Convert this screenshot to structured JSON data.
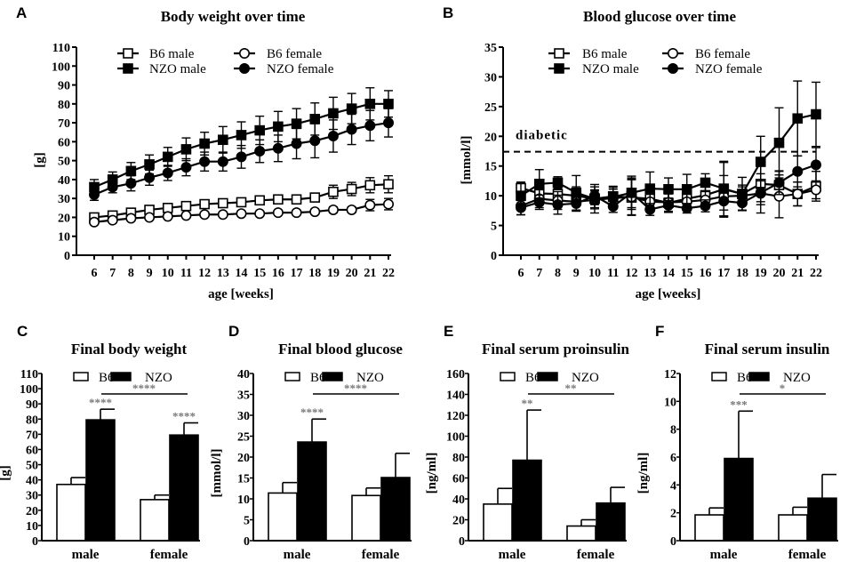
{
  "chart_data": [
    {
      "panel": "A",
      "type": "line",
      "title": "Body weight over time",
      "xlabel": "age [weeks]",
      "ylabel": "[g]",
      "x": [
        6,
        7,
        8,
        9,
        10,
        11,
        12,
        13,
        14,
        15,
        16,
        17,
        18,
        19,
        20,
        21,
        22
      ],
      "xticks": [
        "6",
        "7",
        "8",
        "9",
        "10",
        "11",
        "12",
        "13",
        "14",
        "15",
        "16",
        "17",
        "18",
        "19",
        "20",
        "21",
        "22"
      ],
      "ylim": [
        0,
        110
      ],
      "yticks": [
        "0",
        "10",
        "20",
        "30",
        "40",
        "50",
        "60",
        "70",
        "80",
        "90",
        "100",
        "110"
      ],
      "legend_placement": "top",
      "series": [
        {
          "name": "B6 male",
          "marker": "open-square",
          "values": [
            20,
            21,
            22.5,
            24,
            25,
            26,
            27,
            27.5,
            28,
            29,
            29.5,
            29.5,
            30.5,
            33.5,
            35,
            37,
            37.5
          ],
          "errors": [
            1.5,
            1.5,
            1.5,
            1.5,
            1.5,
            1.5,
            1.5,
            1.5,
            1.5,
            1.5,
            1.5,
            1.5,
            2,
            3.5,
            3.5,
            4,
            4.5
          ]
        },
        {
          "name": "B6 female",
          "marker": "open-circle",
          "values": [
            17.5,
            18.5,
            19.5,
            20,
            20.5,
            21,
            21.5,
            21.5,
            22,
            22,
            22.5,
            22.5,
            23,
            24,
            24,
            26.5,
            27
          ],
          "errors": [
            1,
            1,
            1,
            1,
            1,
            1,
            1,
            1,
            1,
            1,
            1,
            1,
            1,
            1.5,
            1.5,
            3,
            3
          ]
        },
        {
          "name": "NZO male",
          "marker": "filled-square",
          "values": [
            36,
            40,
            44.5,
            48,
            52,
            56,
            59,
            61,
            63.5,
            66,
            68,
            69.5,
            72,
            75,
            77.5,
            80,
            80
          ],
          "errors": [
            4,
            4,
            4.5,
            5,
            5,
            6,
            6,
            7,
            7,
            7.5,
            8,
            8,
            8.5,
            8.5,
            8,
            8.5,
            7
          ]
        },
        {
          "name": "NZO female",
          "marker": "filled-circle",
          "values": [
            32,
            36,
            38,
            41,
            43.5,
            46.5,
            49.5,
            49.5,
            52,
            55,
            56.5,
            59,
            60.5,
            63,
            66.5,
            68.5,
            70
          ],
          "errors": [
            3,
            3,
            4,
            4,
            4,
            4.5,
            5,
            5,
            6,
            6,
            7,
            8,
            9,
            8.5,
            8,
            8,
            7.5
          ]
        }
      ]
    },
    {
      "panel": "B",
      "type": "line",
      "title": "Blood glucose over time",
      "xlabel": "age [weeks]",
      "ylabel": "[mmol/l]",
      "x": [
        6,
        7,
        8,
        9,
        10,
        11,
        12,
        13,
        14,
        15,
        16,
        17,
        18,
        19,
        20,
        21,
        22
      ],
      "xticks": [
        "6",
        "7",
        "8",
        "9",
        "10",
        "11",
        "12",
        "13",
        "14",
        "15",
        "16",
        "17",
        "18",
        "19",
        "20",
        "21",
        "22"
      ],
      "ylim": [
        0,
        35
      ],
      "yticks": [
        "0",
        "5",
        "10",
        "15",
        "20",
        "25",
        "30",
        "35"
      ],
      "legend_placement": "top",
      "threshold": {
        "label": "diabetic",
        "value": 17.4
      },
      "series": [
        {
          "name": "B6 male",
          "marker": "open-square",
          "values": [
            11.3,
            10.4,
            10.3,
            10,
            9.5,
            9.9,
            9.7,
            9.5,
            8.8,
            9.5,
            10.1,
            11.1,
            10.3,
            12,
            11.8,
            10.3,
            11.6
          ],
          "errors": [
            1,
            1.5,
            1,
            1.5,
            1.5,
            1.5,
            3,
            2,
            1.5,
            1.5,
            1.5,
            4.5,
            1.5,
            3,
            2.3,
            2,
            2.5
          ]
        },
        {
          "name": "B6 female",
          "marker": "open-circle",
          "values": [
            8.3,
            9.5,
            9.2,
            9,
            9.3,
            9.6,
            9.8,
            9,
            8.9,
            9,
            9.3,
            9.9,
            10,
            10.4,
            9.9,
            10.3,
            11
          ],
          "errors": [
            1.5,
            1.5,
            1.5,
            1.5,
            1.5,
            1.5,
            3,
            1.5,
            1.5,
            1.5,
            1.5,
            3.5,
            1.5,
            3.3,
            3.6,
            2,
            1.5
          ]
        },
        {
          "name": "NZO male",
          "marker": "filled-square",
          "values": [
            10,
            12,
            12.2,
            10.5,
            9.5,
            9.8,
            10.5,
            11.2,
            11.1,
            11.1,
            12.2,
            11.2,
            10.3,
            15.7,
            18.9,
            23,
            23.7
          ],
          "errors": [
            2.2,
            2.4,
            1,
            2.9,
            2.4,
            1.8,
            2.8,
            2.8,
            1.9,
            2.5,
            1.5,
            4.6,
            2.8,
            4.3,
            5.9,
            6.3,
            5.4
          ]
        },
        {
          "name": "NZO female",
          "marker": "filled-circle",
          "values": [
            8,
            8.9,
            8.5,
            8.7,
            10,
            8.2,
            10.5,
            7.7,
            8.4,
            7.9,
            8.3,
            9.1,
            8.8,
            10.5,
            12.2,
            14.1,
            15.2
          ],
          "errors": [
            1.2,
            1.2,
            1.6,
            1.3,
            1.5,
            1,
            2.5,
            1,
            1.2,
            0.8,
            1,
            1.5,
            1.2,
            2,
            2,
            2.6,
            2.9
          ]
        }
      ]
    },
    {
      "panel": "C",
      "type": "bar",
      "title": "Final body weight",
      "ylabel": "[g]",
      "categories": [
        "male",
        "female"
      ],
      "ylim": [
        0,
        110
      ],
      "yticks": [
        "0",
        "10",
        "20",
        "30",
        "40",
        "50",
        "60",
        "70",
        "80",
        "90",
        "100",
        "110"
      ],
      "legend_placement": "top",
      "series": [
        {
          "name": "B6",
          "fill": "#ffffff",
          "values": [
            37,
            27
          ],
          "errors": [
            4.5,
            3
          ]
        },
        {
          "name": "NZO",
          "fill": "#000000",
          "values": [
            79.5,
            69.5
          ],
          "errors": [
            7,
            8
          ]
        }
      ],
      "significance": {
        "male_nzo": "****",
        "female_nzo": "****",
        "bracket": "****"
      }
    },
    {
      "panel": "D",
      "type": "bar",
      "title": "Final blood glucose",
      "ylabel": "[mmol/l]",
      "categories": [
        "male",
        "female"
      ],
      "ylim": [
        0,
        40
      ],
      "yticks": [
        "0",
        "5",
        "10",
        "15",
        "20",
        "25",
        "30",
        "35",
        "40"
      ],
      "legend_placement": "top",
      "series": [
        {
          "name": "B6",
          "fill": "#ffffff",
          "values": [
            11.4,
            10.8
          ],
          "errors": [
            2.5,
            1.8
          ]
        },
        {
          "name": "NZO",
          "fill": "#000000",
          "values": [
            23.6,
            15.1
          ],
          "errors": [
            5.5,
            5.8
          ]
        }
      ],
      "significance": {
        "male_nzo": "****",
        "female_nzo": "",
        "bracket": "****"
      }
    },
    {
      "panel": "E",
      "type": "bar",
      "title": "Final serum proinsulin",
      "ylabel": "[ng/ml]",
      "categories": [
        "male",
        "female"
      ],
      "ylim": [
        0,
        160
      ],
      "yticks": [
        "0",
        "20",
        "40",
        "60",
        "80",
        "100",
        "120",
        "140",
        "160"
      ],
      "legend_placement": "top",
      "series": [
        {
          "name": "B6",
          "fill": "#ffffff",
          "values": [
            35,
            14
          ],
          "errors": [
            15,
            6
          ]
        },
        {
          "name": "NZO",
          "fill": "#000000",
          "values": [
            77,
            36
          ],
          "errors": [
            48,
            15
          ]
        }
      ],
      "significance": {
        "male_nzo": "**",
        "female_nzo": "",
        "bracket": "**"
      }
    },
    {
      "panel": "F",
      "type": "bar",
      "title": "Final serum insulin",
      "ylabel": "[ng/ml]",
      "categories": [
        "male",
        "female"
      ],
      "ylim": [
        0,
        12
      ],
      "yticks": [
        "0",
        "2",
        "4",
        "6",
        "8",
        "10",
        "12"
      ],
      "legend_placement": "top",
      "series": [
        {
          "name": "B6",
          "fill": "#ffffff",
          "values": [
            1.85,
            1.85
          ],
          "errors": [
            0.5,
            0.55
          ]
        },
        {
          "name": "NZO",
          "fill": "#000000",
          "values": [
            5.9,
            3.05
          ],
          "errors": [
            3.4,
            1.7
          ]
        }
      ],
      "significance": {
        "male_nzo": "***",
        "female_nzo": "",
        "bracket": "*"
      }
    }
  ]
}
